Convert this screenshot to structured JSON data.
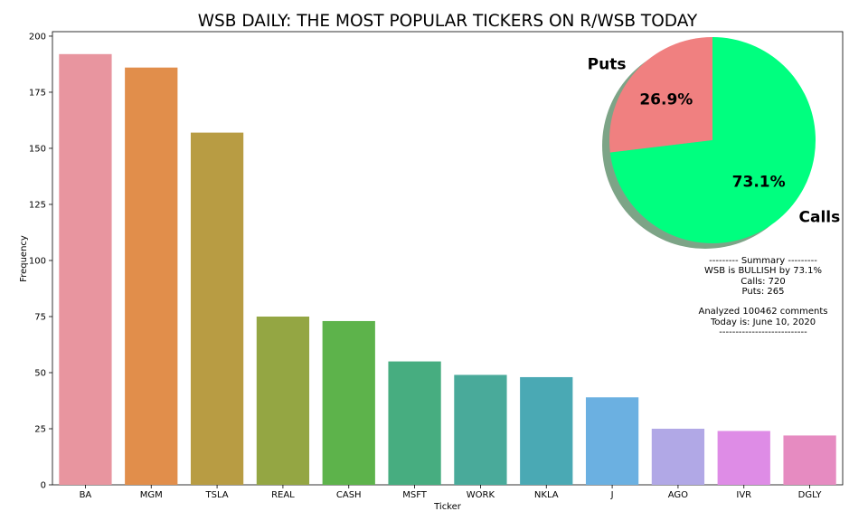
{
  "chart_data": [
    {
      "type": "bar",
      "title": "WSB DAILY: THE MOST POPULAR TICKERS ON R/WSB TODAY",
      "xlabel": "Ticker",
      "ylabel": "Frequency",
      "ylim": [
        0,
        202
      ],
      "yticks": [
        0,
        25,
        50,
        75,
        100,
        125,
        150,
        175,
        200
      ],
      "grid": false,
      "categories": [
        "BA",
        "MGM",
        "TSLA",
        "REAL",
        "CASH",
        "MSFT",
        "WORK",
        "NKLA",
        "J",
        "AGO",
        "IVR",
        "DGLY"
      ],
      "values": [
        192,
        186,
        157,
        75,
        73,
        55,
        49,
        48,
        39,
        25,
        24,
        22
      ],
      "colors": [
        "#e8959f",
        "#e18e4b",
        "#b89c43",
        "#94a643",
        "#5db34b",
        "#47ad80",
        "#49aa9a",
        "#4aa9b4",
        "#6bb0e1",
        "#b1a8e6",
        "#de8ce6",
        "#e68bc1"
      ]
    },
    {
      "type": "pie",
      "labels": [
        "Puts",
        "Calls"
      ],
      "values": [
        26.9,
        73.1
      ],
      "value_labels": [
        "26.9%",
        "73.1%"
      ],
      "colors": [
        "#f08080",
        "#00ff7f"
      ],
      "shadow": true
    }
  ],
  "summary": {
    "lines": [
      "--------- Summary ---------",
      "WSB is BULLISH by 73.1%",
      "Calls: 720",
      "Puts: 265",
      "",
      "Analyzed 100462 comments",
      "Today is: June 10, 2020",
      "---------------------------"
    ]
  }
}
